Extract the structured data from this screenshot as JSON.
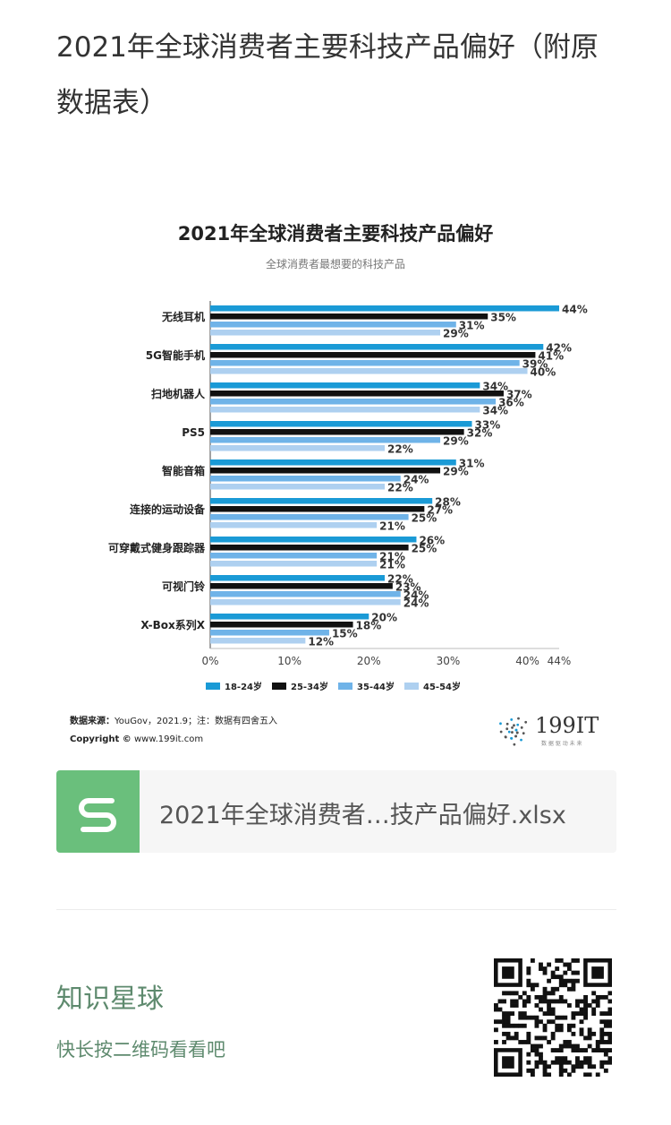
{
  "article": {
    "title": "2021年全球消费者主要科技产品偏好（附原数据表）"
  },
  "chart_data": {
    "type": "bar",
    "orientation": "horizontal",
    "title": "2021年全球消费者主要科技产品偏好",
    "subtitle": "全球消费者最想要的科技产品",
    "categories": [
      "无线耳机",
      "5G智能手机",
      "扫地机器人",
      "PS5",
      "智能音箱",
      "连接的运动设备",
      "可穿戴式健身跟踪器",
      "可视门铃",
      "X-Box系列X"
    ],
    "series": [
      {
        "name": "18-24岁",
        "color": "#1a9ad6",
        "values": [
          44,
          42,
          34,
          33,
          31,
          28,
          26,
          22,
          20
        ]
      },
      {
        "name": "25-34岁",
        "color": "#111111",
        "values": [
          35,
          41,
          37,
          32,
          29,
          27,
          25,
          23,
          18
        ]
      },
      {
        "name": "35-44岁",
        "color": "#6fb3e8",
        "values": [
          31,
          39,
          36,
          29,
          24,
          25,
          21,
          24,
          15
        ]
      },
      {
        "name": "45-54岁",
        "color": "#aed0f0",
        "values": [
          29,
          40,
          34,
          22,
          22,
          21,
          21,
          24,
          12
        ]
      }
    ],
    "value_suffix": "%",
    "xlim": [
      0,
      44
    ],
    "xticks": [
      {
        "value": 0,
        "label": "0%"
      },
      {
        "value": 10,
        "label": "10%"
      },
      {
        "value": 20,
        "label": "20%"
      },
      {
        "value": 30,
        "label": "30%"
      },
      {
        "value": 40,
        "label": "40%"
      },
      {
        "value": 44,
        "label": "44%"
      }
    ],
    "grid": false,
    "legend_position": "bottom",
    "source_label": "数据来源：",
    "source_text": "YouGov，2021.9；注：数据有四舍五入",
    "copyright_label": "Copyright ©",
    "copyright_text": " www.199it.com",
    "logo_text": "199IT",
    "logo_tagline": "数 据 驱 动 未 来"
  },
  "file_card": {
    "icon": "spreadsheet-s-icon",
    "name": "2021年全球消费者…技产品偏好.xlsx"
  },
  "promo": {
    "title": "知识星球",
    "subtitle": "快长按二维码看看吧",
    "qr_icon": "qr-code-icon"
  }
}
